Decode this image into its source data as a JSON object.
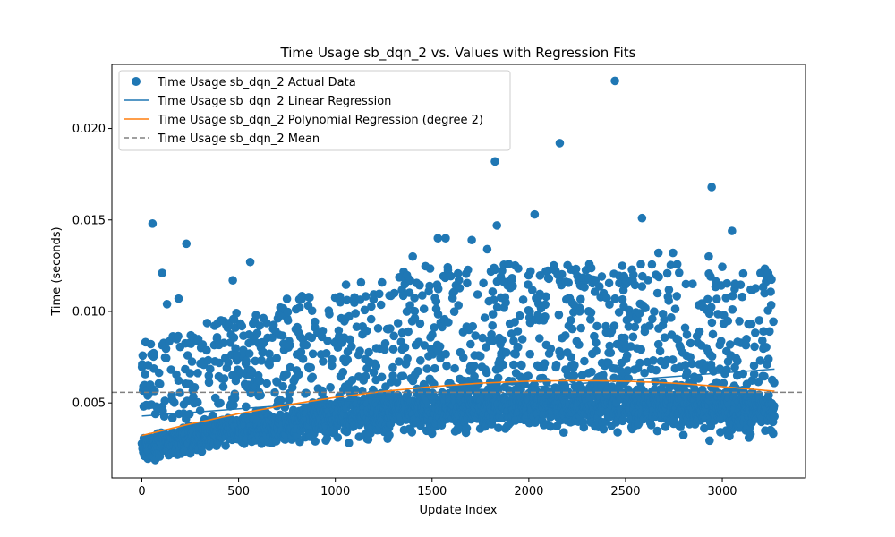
{
  "chart_data": {
    "type": "scatter",
    "title": "Time Usage sb_dqn_2 vs. Values with Regression Fits",
    "xlabel": "Update Index",
    "ylabel": "Time (seconds)",
    "xlim": [
      -155,
      3430
    ],
    "ylim": [
      0.0009,
      0.0235
    ],
    "x_ticks": [
      0,
      500,
      1000,
      1500,
      2000,
      2500,
      3000
    ],
    "y_ticks": [
      0.005,
      0.01,
      0.015,
      0.02
    ],
    "y_tick_labels": [
      "0.005",
      "0.010",
      "0.015",
      "0.020"
    ],
    "grid": false,
    "legend_position": "top-left",
    "legend": [
      "Time Usage sb_dqn_2 Actual Data",
      "Time Usage sb_dqn_2 Linear Regression",
      "Time Usage sb_dqn_2 Polynomial Regression (degree 2)",
      "Time Usage sb_dqn_2 Mean"
    ],
    "series": [
      {
        "name": "Time Usage sb_dqn_2 Actual Data",
        "kind": "scatter",
        "color": "#1f77b4",
        "n_points": 3270,
        "outliers": [
          {
            "x": 55,
            "y": 0.0148
          },
          {
            "x": 105,
            "y": 0.0121
          },
          {
            "x": 130,
            "y": 0.0104
          },
          {
            "x": 190,
            "y": 0.0107
          },
          {
            "x": 230,
            "y": 0.0137
          },
          {
            "x": 470,
            "y": 0.0117
          },
          {
            "x": 560,
            "y": 0.0127
          },
          {
            "x": 1400,
            "y": 0.013
          },
          {
            "x": 1530,
            "y": 0.014
          },
          {
            "x": 1570,
            "y": 0.014
          },
          {
            "x": 1705,
            "y": 0.0139
          },
          {
            "x": 1785,
            "y": 0.0134
          },
          {
            "x": 1825,
            "y": 0.0182
          },
          {
            "x": 1835,
            "y": 0.0147
          },
          {
            "x": 2030,
            "y": 0.0153
          },
          {
            "x": 2160,
            "y": 0.0192
          },
          {
            "x": 2445,
            "y": 0.0226
          },
          {
            "x": 2585,
            "y": 0.0151
          },
          {
            "x": 2670,
            "y": 0.0132
          },
          {
            "x": 2745,
            "y": 0.0132
          },
          {
            "x": 2930,
            "y": 0.013
          },
          {
            "x": 2945,
            "y": 0.0168
          },
          {
            "x": 3050,
            "y": 0.0144
          }
        ]
      },
      {
        "name": "Time Usage sb_dqn_2 Linear Regression",
        "kind": "line",
        "color": "#1f77b4",
        "x": [
          0,
          3270
        ],
        "y": [
          0.00428,
          0.00685
        ]
      },
      {
        "name": "Time Usage sb_dqn_2 Polynomial Regression (degree 2)",
        "kind": "line",
        "color": "#ff7f0e",
        "x": [
          0,
          250,
          500,
          750,
          1000,
          1250,
          1500,
          1750,
          2000,
          2250,
          2500,
          2750,
          3000,
          3270
        ],
        "y": [
          0.00322,
          0.00385,
          0.00441,
          0.00489,
          0.0053,
          0.00563,
          0.00589,
          0.00608,
          0.00619,
          0.00622,
          0.00619,
          0.00608,
          0.00589,
          0.00564
        ]
      },
      {
        "name": "Time Usage sb_dqn_2 Mean",
        "kind": "hline",
        "color": "#808080",
        "y": 0.00558
      }
    ]
  }
}
